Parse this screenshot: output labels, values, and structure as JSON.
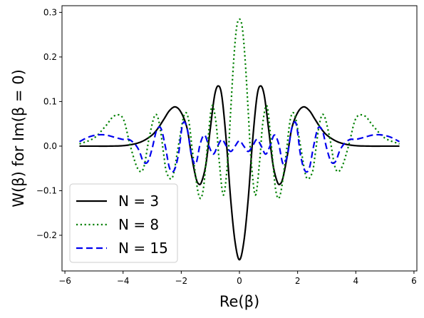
{
  "chart_data": {
    "type": "line",
    "xlabel": "Re(β)",
    "ylabel": "W(β) for Im(β = 0)",
    "xlim": [
      -6.1,
      6.1
    ],
    "ylim": [
      -0.28,
      0.315
    ],
    "xticks": [
      -6,
      -4,
      -2,
      0,
      2,
      4,
      6
    ],
    "xtick_labels": [
      "−6",
      "−4",
      "−2",
      "0",
      "2",
      "4",
      "6"
    ],
    "yticks": [
      -0.2,
      -0.1,
      0.0,
      0.1,
      0.2,
      0.3
    ],
    "ytick_labels": [
      "−0.2",
      "−0.1",
      "0.0",
      "0.1",
      "0.2",
      "0.3"
    ],
    "grid": false,
    "legend_position": "lower-left",
    "series": [
      {
        "name": "N = 3",
        "style": "solid",
        "color": "#000000",
        "x": [
          0,
          0.15,
          0.3,
          0.45,
          0.6,
          0.72,
          0.85,
          1.0,
          1.15,
          1.3,
          1.4,
          1.5,
          1.65,
          1.8,
          2.0,
          2.2,
          2.4,
          2.6,
          2.8,
          3.0,
          3.3,
          3.6,
          4.0,
          4.5,
          5.0,
          5.5
        ],
        "y": [
          -0.255,
          -0.215,
          -0.12,
          0.01,
          0.11,
          0.135,
          0.115,
          0.04,
          -0.04,
          -0.08,
          -0.085,
          -0.07,
          -0.02,
          0.04,
          0.075,
          0.088,
          0.08,
          0.06,
          0.04,
          0.025,
          0.012,
          0.005,
          0.001,
          0.0,
          0.0,
          0.0
        ]
      },
      {
        "name": "N = 8",
        "style": "dotted",
        "color": "#008000",
        "x": [
          0,
          0.1,
          0.2,
          0.3,
          0.4,
          0.55,
          0.7,
          0.8,
          0.95,
          1.1,
          1.25,
          1.4,
          1.6,
          1.75,
          1.9,
          2.1,
          2.3,
          2.5,
          2.6,
          2.75,
          2.9,
          3.1,
          3.3,
          3.5,
          3.75,
          4.0,
          4.3,
          4.6,
          5.0,
          5.5
        ],
        "y": [
          0.285,
          0.265,
          0.19,
          0.08,
          -0.03,
          -0.11,
          -0.03,
          0.05,
          0.09,
          0.0,
          -0.1,
          -0.11,
          -0.02,
          0.06,
          0.07,
          0.0,
          -0.07,
          -0.06,
          -0.02,
          0.05,
          0.07,
          0.02,
          -0.05,
          -0.05,
          0.0,
          0.062,
          0.068,
          0.045,
          0.018,
          0.005
        ]
      },
      {
        "name": "N = 15",
        "style": "dashed",
        "color": "#0000ee",
        "x": [
          0,
          0.15,
          0.3,
          0.45,
          0.6,
          0.75,
          0.9,
          1.05,
          1.2,
          1.35,
          1.5,
          1.65,
          1.8,
          1.95,
          2.1,
          2.25,
          2.4,
          2.55,
          2.7,
          2.85,
          3.0,
          3.15,
          3.3,
          3.45,
          3.6,
          3.8,
          4.0,
          4.3,
          4.6,
          4.9,
          5.2,
          5.5
        ],
        "y": [
          0.012,
          0.0,
          -0.012,
          0.0,
          0.015,
          0.0,
          -0.018,
          0.0,
          0.025,
          0.005,
          -0.04,
          -0.02,
          0.04,
          0.05,
          -0.02,
          -0.055,
          -0.05,
          0.0,
          0.04,
          0.035,
          -0.005,
          -0.035,
          -0.035,
          -0.01,
          0.005,
          0.015,
          0.015,
          0.02,
          0.025,
          0.025,
          0.02,
          0.01
        ]
      }
    ]
  }
}
